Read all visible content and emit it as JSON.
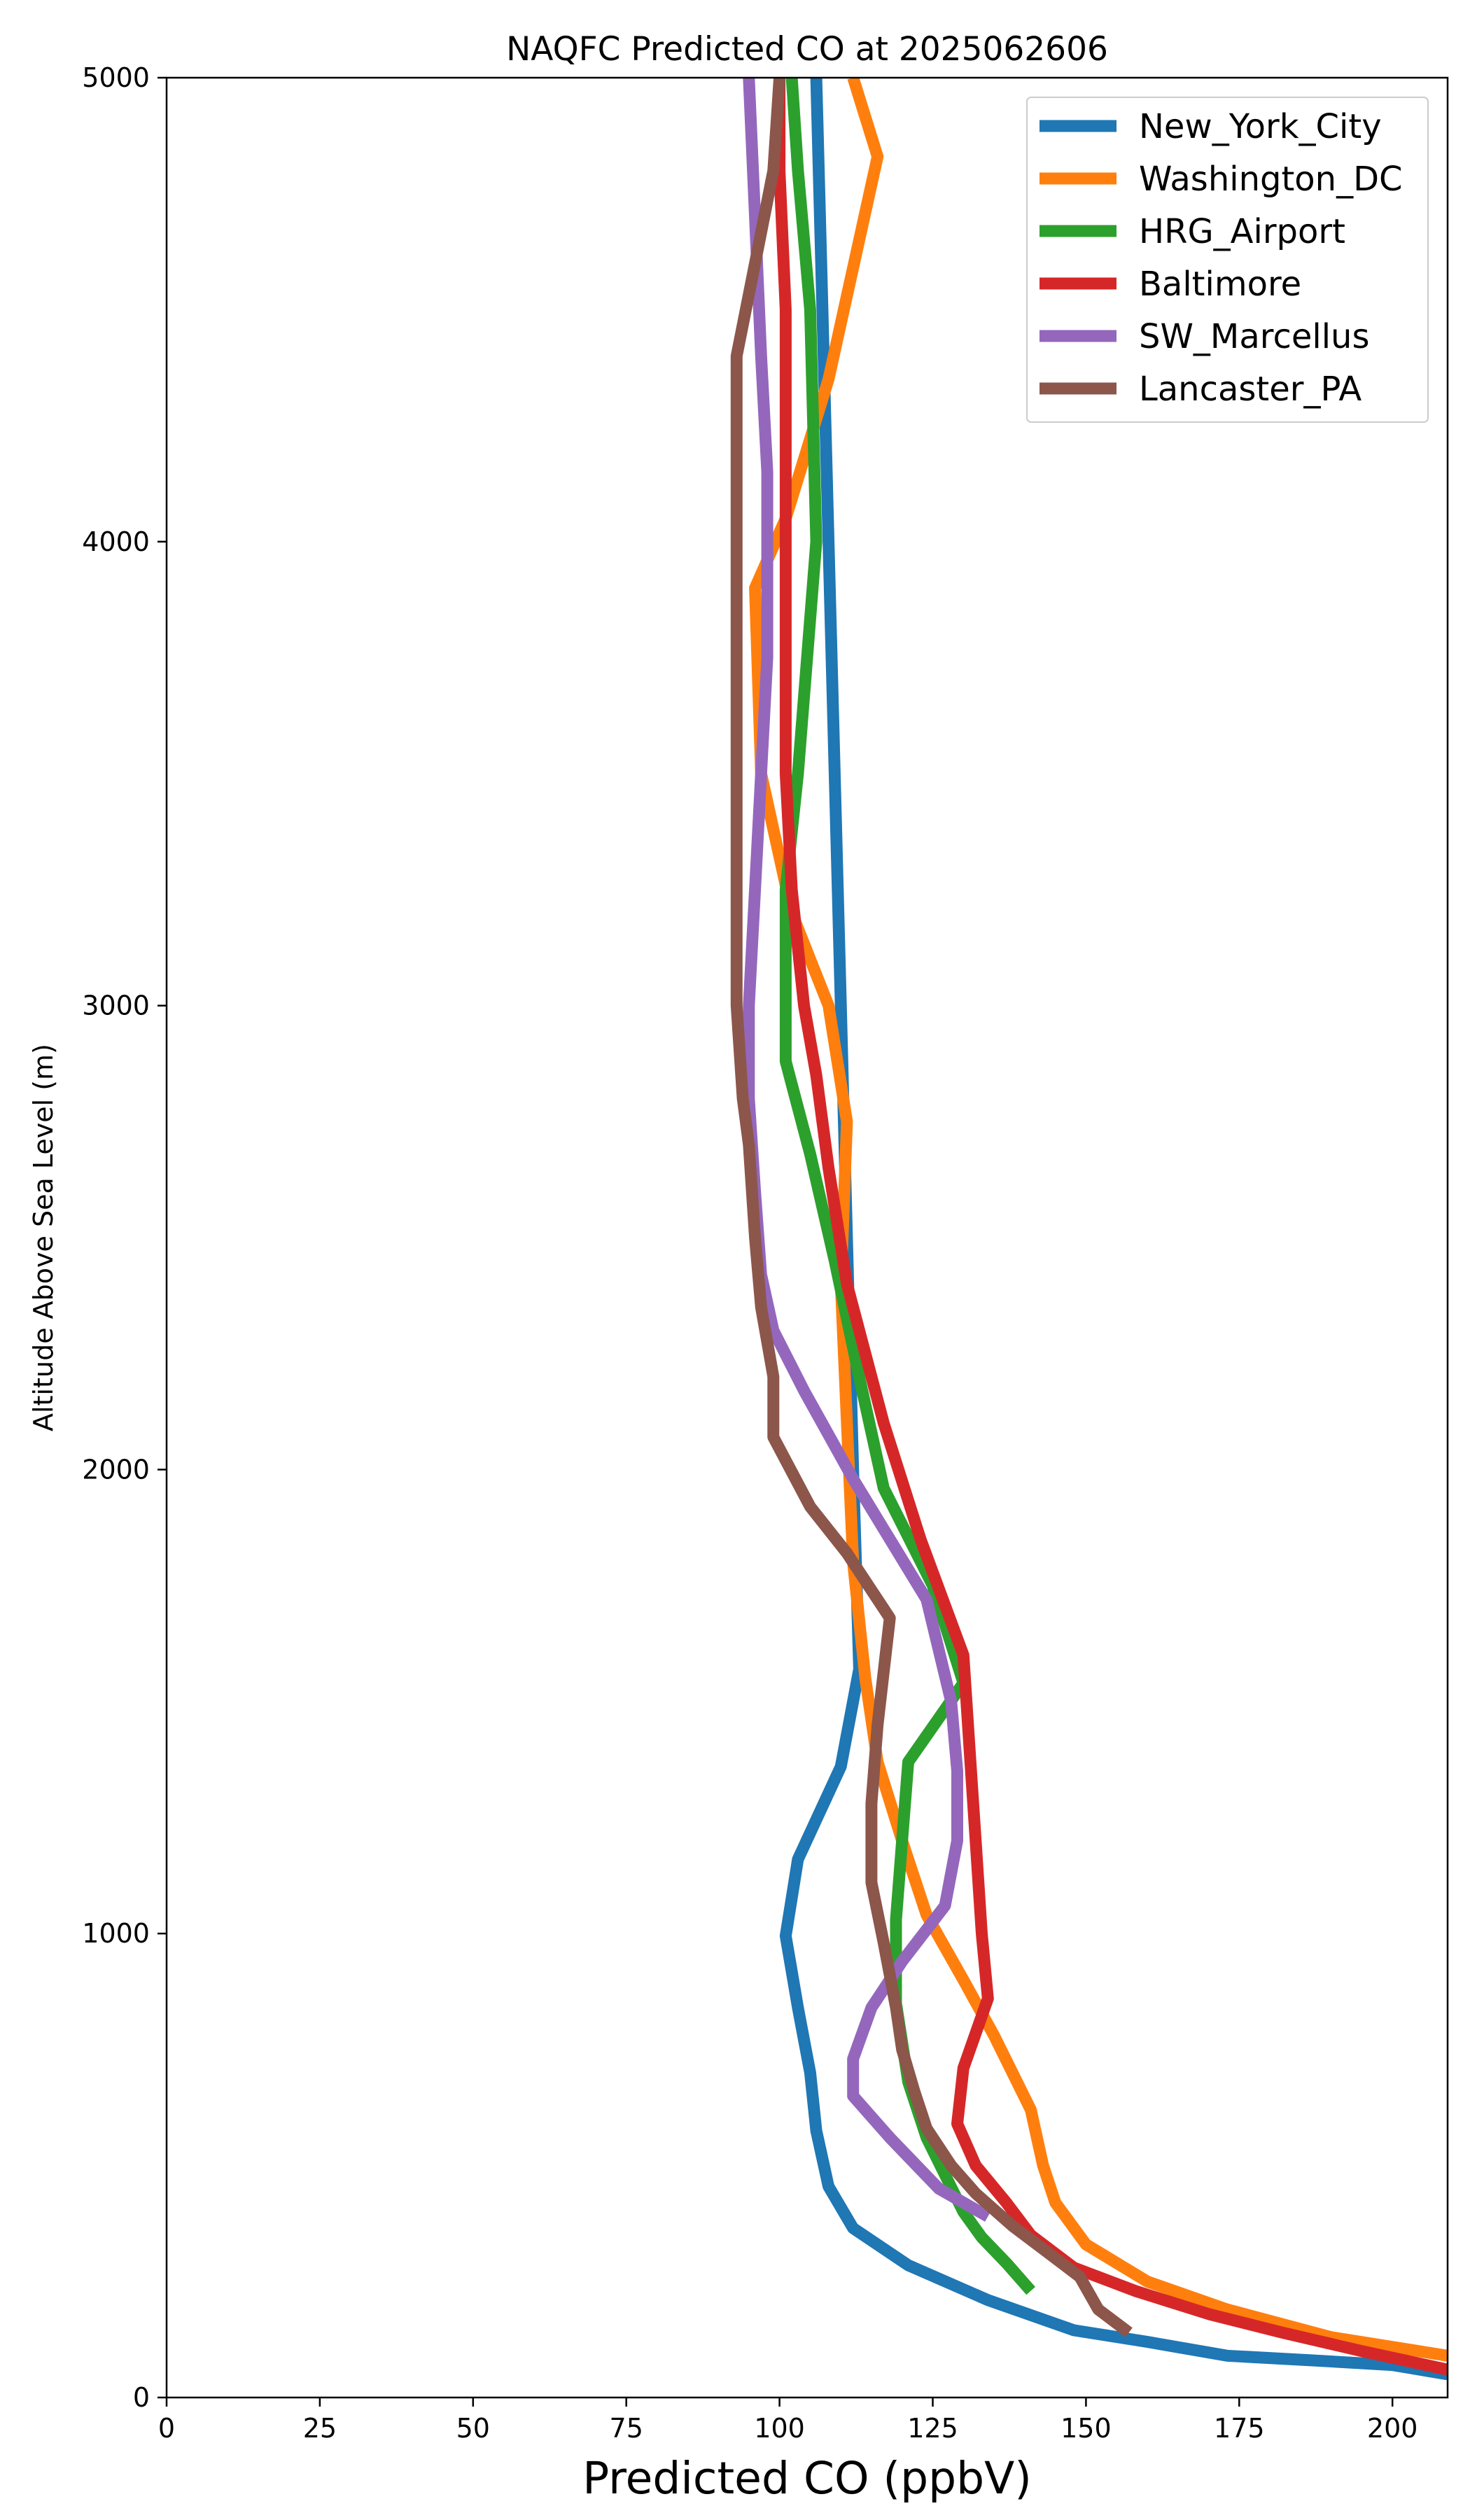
{
  "chart_data": {
    "type": "line",
    "title": "NAQFC Predicted CO at 2025062606",
    "xlabel": "Predicted CO (ppbV)",
    "ylabel": "Altitude Above Sea Level (m)",
    "xlim": [
      0,
      209
    ],
    "ylim": [
      0,
      5000
    ],
    "xticks": [
      "0",
      "25",
      "50",
      "75",
      "100",
      "125",
      "150",
      "175",
      "200"
    ],
    "yticks": [
      "0",
      "1000",
      "2000",
      "3000",
      "4000",
      "5000"
    ],
    "grid": false,
    "legend_position": "top-right",
    "series": [
      {
        "name": "New_York_City",
        "color": "#1f77b4",
        "points": [
          [
            209,
            50
          ],
          [
            200,
            70
          ],
          [
            187,
            80
          ],
          [
            173,
            90
          ],
          [
            160,
            120
          ],
          [
            148,
            145
          ],
          [
            134,
            210
          ],
          [
            121,
            285
          ],
          [
            112,
            365
          ],
          [
            108,
            455
          ],
          [
            106,
            575
          ],
          [
            105,
            700
          ],
          [
            103,
            840
          ],
          [
            101,
            995
          ],
          [
            103,
            1160
          ],
          [
            110,
            1360
          ],
          [
            113,
            1570
          ],
          [
            112,
            2000
          ],
          [
            111,
            2500
          ],
          [
            110,
            3000
          ],
          [
            109,
            3500
          ],
          [
            108,
            4000
          ],
          [
            107,
            4500
          ],
          [
            106,
            5000
          ]
        ]
      },
      {
        "name": "Washington_DC",
        "color": "#ff7f0e",
        "points": [
          [
            209,
            90
          ],
          [
            190,
            130
          ],
          [
            173,
            190
          ],
          [
            160,
            250
          ],
          [
            150,
            330
          ],
          [
            145,
            420
          ],
          [
            143,
            500
          ],
          [
            141,
            620
          ],
          [
            135,
            780
          ],
          [
            130,
            900
          ],
          [
            124,
            1040
          ],
          [
            120,
            1200
          ],
          [
            116,
            1370
          ],
          [
            114,
            1550
          ],
          [
            112,
            1800
          ],
          [
            111,
            2100
          ],
          [
            110,
            2400
          ],
          [
            111,
            2750
          ],
          [
            108,
            3000
          ],
          [
            102,
            3200
          ],
          [
            97,
            3500
          ],
          [
            96,
            3900
          ],
          [
            101,
            4050
          ],
          [
            108,
            4350
          ],
          [
            116,
            4830
          ],
          [
            112,
            5000
          ]
        ]
      },
      {
        "name": "HRG_Airport",
        "color": "#2ca02c",
        "points": [
          [
            141,
            230
          ],
          [
            137,
            290
          ],
          [
            133,
            345
          ],
          [
            130,
            400
          ],
          [
            127,
            480
          ],
          [
            124,
            560
          ],
          [
            121,
            680
          ],
          [
            119,
            850
          ],
          [
            119,
            1030
          ],
          [
            120,
            1200
          ],
          [
            121,
            1370
          ],
          [
            130,
            1540
          ],
          [
            125,
            1750
          ],
          [
            117,
            1960
          ],
          [
            113,
            2200
          ],
          [
            109,
            2450
          ],
          [
            105,
            2680
          ],
          [
            101,
            2880
          ],
          [
            101,
            3000
          ],
          [
            101,
            3250
          ],
          [
            103,
            3500
          ],
          [
            106,
            4000
          ],
          [
            105,
            4500
          ],
          [
            103,
            4800
          ],
          [
            102,
            5000
          ]
        ]
      },
      {
        "name": "Baltimore",
        "color": "#d62728",
        "points": [
          [
            209,
            60
          ],
          [
            195,
            100
          ],
          [
            182,
            140
          ],
          [
            170,
            180
          ],
          [
            158,
            230
          ],
          [
            148,
            280
          ],
          [
            141,
            350
          ],
          [
            137,
            420
          ],
          [
            132,
            500
          ],
          [
            129,
            590
          ],
          [
            130,
            710
          ],
          [
            134,
            860
          ],
          [
            133,
            1000
          ],
          [
            132,
            1200
          ],
          [
            131,
            1400
          ],
          [
            130,
            1600
          ],
          [
            123,
            1850
          ],
          [
            117,
            2100
          ],
          [
            111,
            2400
          ],
          [
            108,
            2650
          ],
          [
            106,
            2850
          ],
          [
            104,
            3000
          ],
          [
            102,
            3250
          ],
          [
            101,
            3500
          ],
          [
            101,
            4000
          ],
          [
            101,
            4500
          ],
          [
            100,
            4800
          ],
          [
            100,
            5000
          ]
        ]
      },
      {
        "name": "SW_Marcellus",
        "color": "#9467bd",
        "points": [
          [
            134,
            390
          ],
          [
            126,
            450
          ],
          [
            118,
            560
          ],
          [
            112,
            650
          ],
          [
            112,
            730
          ],
          [
            115,
            840
          ],
          [
            120,
            940
          ],
          [
            127,
            1060
          ],
          [
            129,
            1200
          ],
          [
            129,
            1350
          ],
          [
            128,
            1500
          ],
          [
            124,
            1720
          ],
          [
            112,
            1980
          ],
          [
            104,
            2170
          ],
          [
            99,
            2300
          ],
          [
            97,
            2420
          ],
          [
            96,
            2600
          ],
          [
            95,
            2800
          ],
          [
            95,
            3000
          ],
          [
            96,
            3250
          ],
          [
            97,
            3500
          ],
          [
            98,
            3750
          ],
          [
            98,
            4000
          ],
          [
            98,
            4150
          ],
          [
            97,
            4400
          ],
          [
            96,
            4700
          ],
          [
            95,
            5000
          ]
        ]
      },
      {
        "name": "Lancaster_PA",
        "color": "#8c564b",
        "points": [
          [
            157,
            140
          ],
          [
            152,
            190
          ],
          [
            149,
            260
          ],
          [
            144,
            310
          ],
          [
            138,
            370
          ],
          [
            132,
            440
          ],
          [
            128,
            500
          ],
          [
            124,
            580
          ],
          [
            122,
            660
          ],
          [
            120,
            750
          ],
          [
            119,
            840
          ],
          [
            117,
            980
          ],
          [
            115,
            1110
          ],
          [
            115,
            1280
          ],
          [
            116,
            1450
          ],
          [
            118,
            1680
          ],
          [
            111,
            1820
          ],
          [
            105,
            1920
          ],
          [
            99,
            2070
          ],
          [
            99,
            2200
          ],
          [
            97,
            2350
          ],
          [
            96,
            2500
          ],
          [
            95,
            2700
          ],
          [
            94,
            2800
          ],
          [
            93,
            3000
          ],
          [
            93,
            3150
          ],
          [
            93,
            3500
          ],
          [
            93,
            4000
          ],
          [
            93,
            4400
          ],
          [
            96,
            4600
          ],
          [
            99,
            4800
          ],
          [
            100,
            5000
          ]
        ]
      }
    ]
  }
}
